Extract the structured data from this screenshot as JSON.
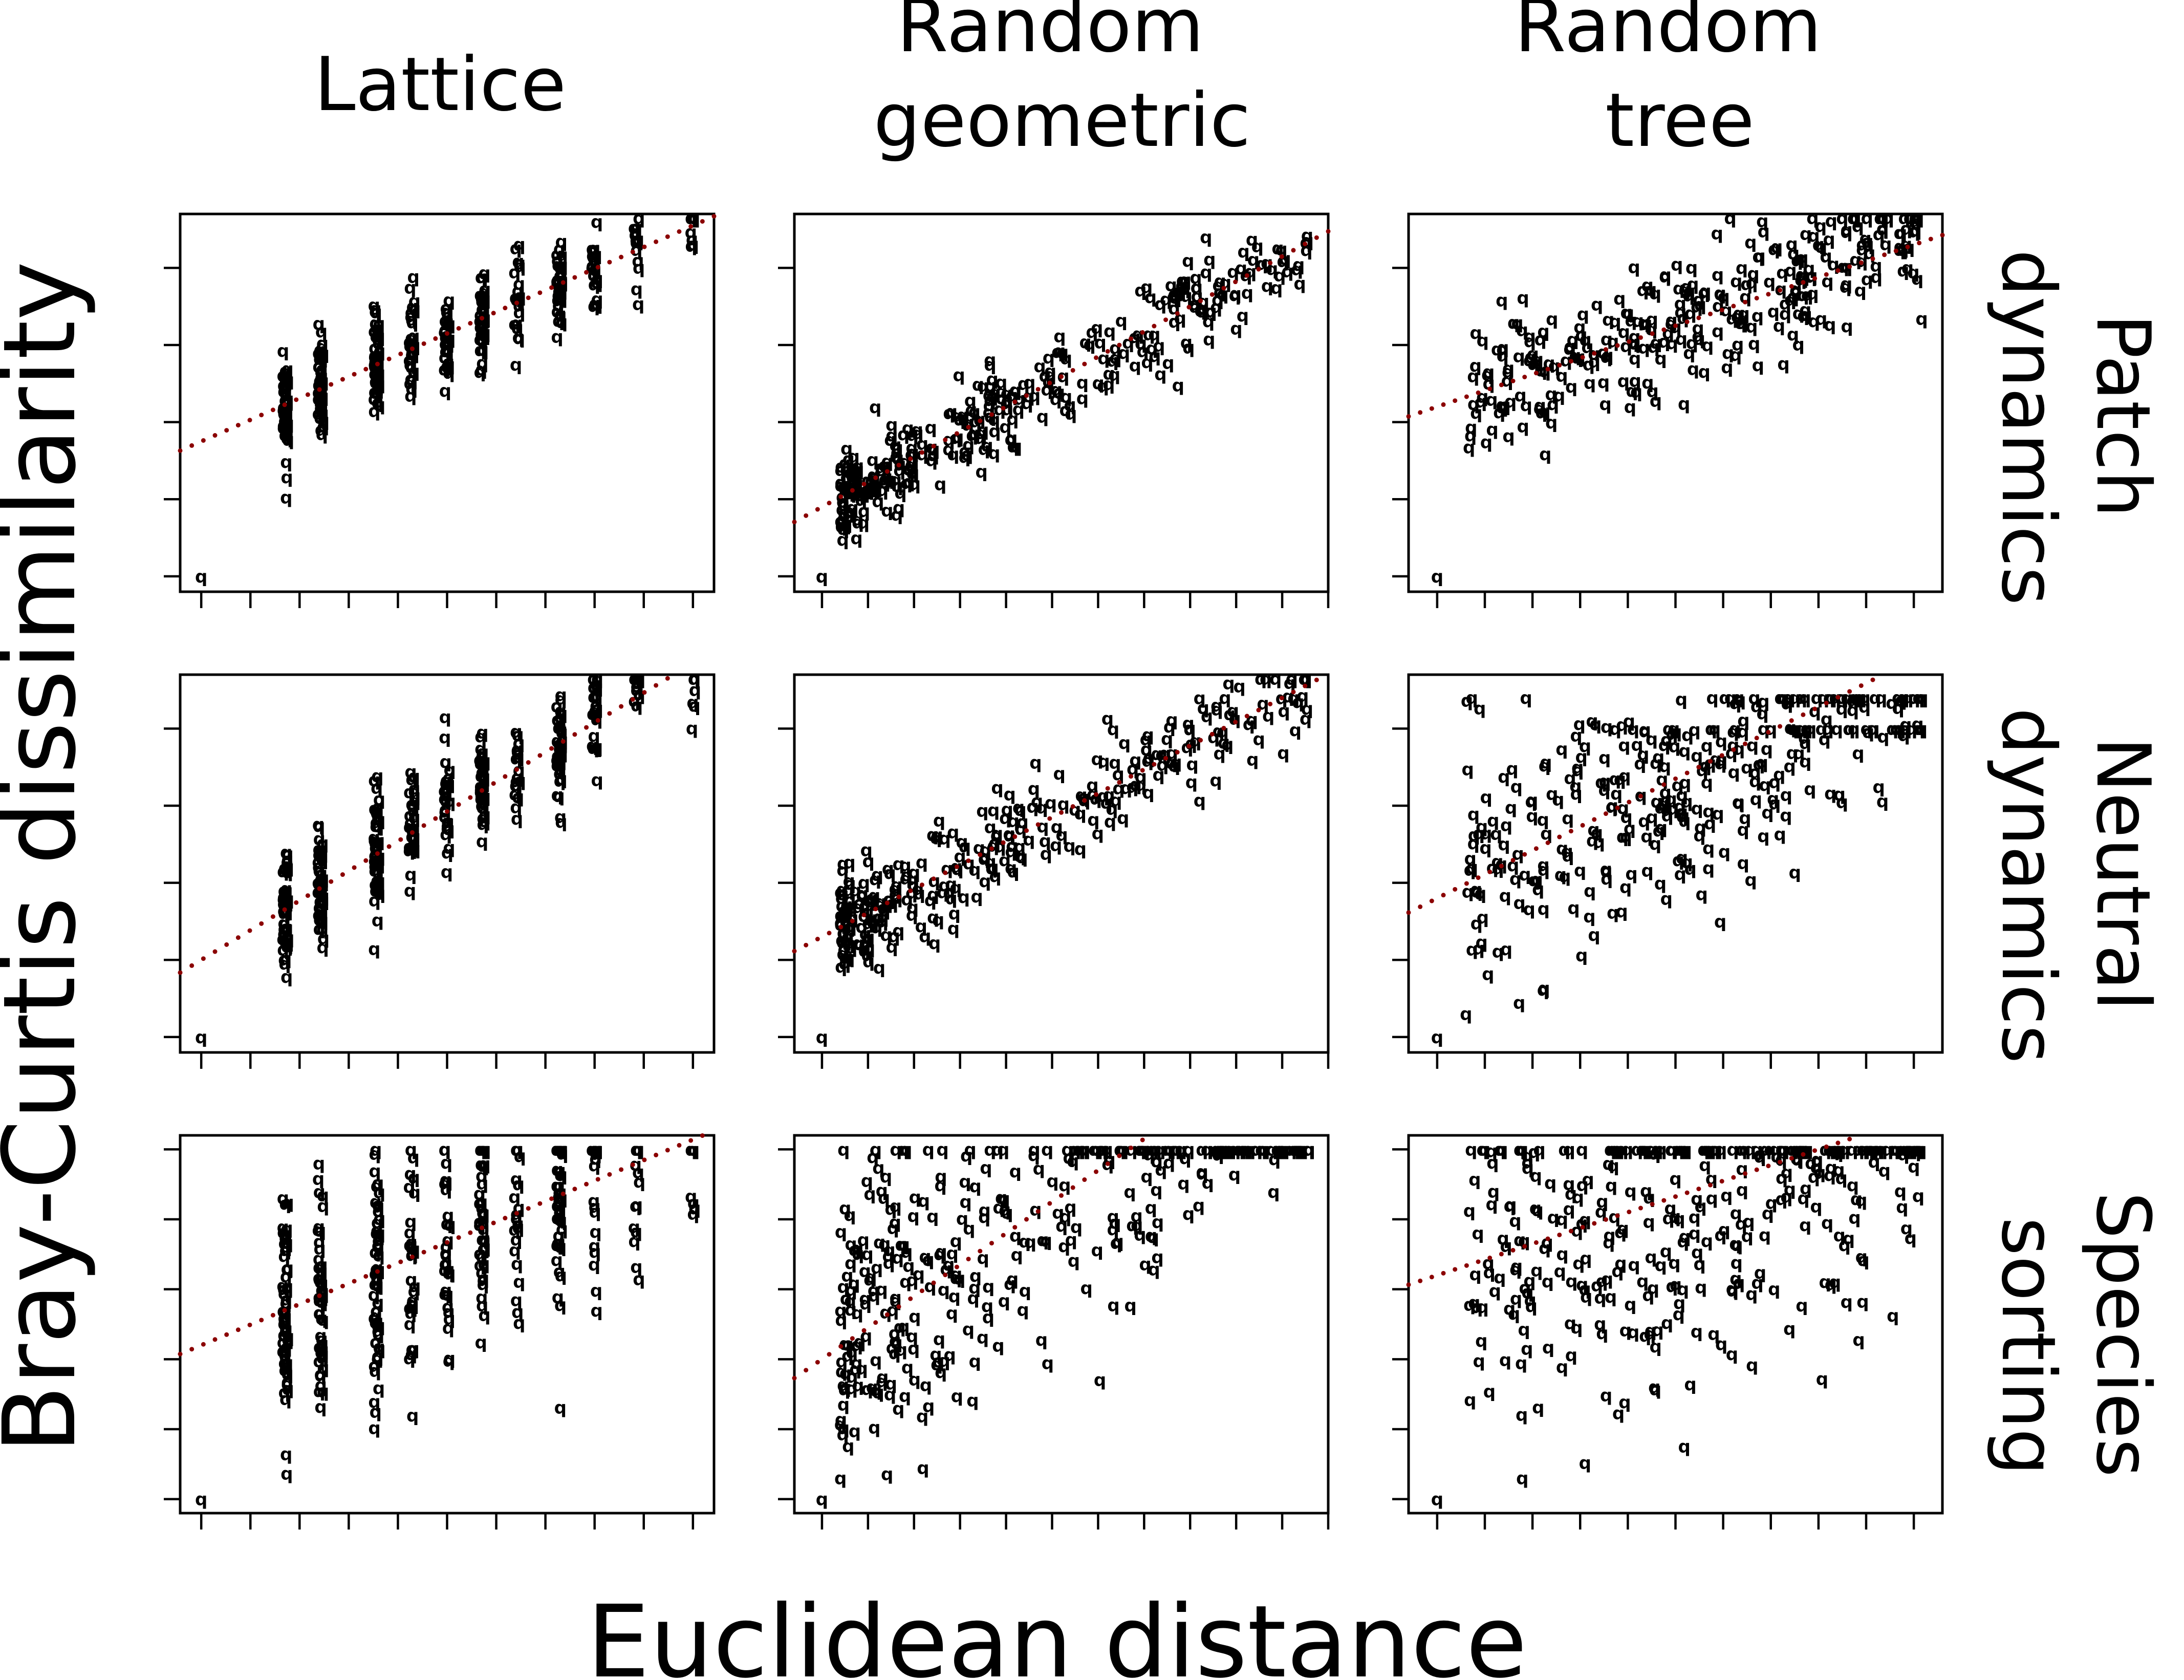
{
  "figure": {
    "xlabel": "Euclidean distance",
    "ylabel": "Bray-Curtis dissimilarity",
    "columns": [
      {
        "lines": [
          "Lattice"
        ]
      },
      {
        "lines": [
          "Random",
          "geometric"
        ]
      },
      {
        "lines": [
          "Random",
          "tree"
        ]
      }
    ],
    "rows": [
      {
        "lines": [
          "Patch",
          "dynamics"
        ]
      },
      {
        "lines": [
          "Neutral",
          "dynamics"
        ]
      },
      {
        "lines": [
          "Species",
          "sorting"
        ]
      }
    ],
    "point_symbol": "q",
    "colors": {
      "points": "#000000",
      "fit_line": "#8b0000",
      "frame": "#000000",
      "background": "#ffffff"
    }
  },
  "chart_data": [
    {
      "type": "scatter",
      "panel": "Lattice / Patch dynamics",
      "xlim": [
        -0.3,
        7.3
      ],
      "ylim": [
        -0.2,
        4.7
      ],
      "fit": {
        "intercept": 1.75,
        "slope": 0.4
      },
      "spread": 0.32,
      "seed": 11,
      "origin_point": [
        0,
        0
      ],
      "clusters": [
        [
          1.2,
          60
        ],
        [
          1.7,
          50
        ],
        [
          2.5,
          55
        ],
        [
          3,
          30
        ],
        [
          3.5,
          30
        ],
        [
          4,
          40
        ],
        [
          4.5,
          20
        ],
        [
          5.1,
          45
        ],
        [
          5.6,
          20
        ],
        [
          6.2,
          15
        ],
        [
          7,
          6
        ]
      ],
      "grid": false
    },
    {
      "type": "scatter",
      "panel": "Random geometric / Patch dynamics",
      "xlim": [
        -0.3,
        5.5
      ],
      "ylim": [
        -0.2,
        4.7
      ],
      "fit": {
        "intercept": 0.9,
        "slope": 0.65
      },
      "spread": 0.28,
      "seed": 22,
      "origin_point": [
        0,
        0
      ],
      "x_range": [
        0.2,
        5.3
      ],
      "x_density": "decreasing",
      "n": 330,
      "grid": false
    },
    {
      "type": "scatter",
      "panel": "Random tree / Patch dynamics",
      "xlim": [
        -0.3,
        5.3
      ],
      "ylim": [
        -0.2,
        4.7
      ],
      "fit": {
        "intercept": 2.2,
        "slope": 0.42
      },
      "spread": 0.45,
      "seed": 33,
      "origin_point": [
        0,
        0
      ],
      "x_range": [
        0.3,
        5.1
      ],
      "x_density": "uniform",
      "n": 300,
      "grid": false
    },
    {
      "type": "scatter",
      "panel": "Lattice / Neutral dynamics",
      "xlim": [
        -0.3,
        7.3
      ],
      "ylim": [
        -0.2,
        4.7
      ],
      "fit": {
        "intercept": 1.0,
        "slope": 0.55
      },
      "spread": 0.38,
      "seed": 44,
      "origin_point": [
        0,
        0
      ],
      "clusters": [
        [
          1.2,
          60
        ],
        [
          1.7,
          50
        ],
        [
          2.5,
          55
        ],
        [
          3,
          30
        ],
        [
          3.5,
          30
        ],
        [
          4,
          40
        ],
        [
          4.5,
          20
        ],
        [
          5.1,
          45
        ],
        [
          5.6,
          20
        ],
        [
          6.2,
          15
        ],
        [
          7,
          6
        ]
      ],
      "grid": false
    },
    {
      "type": "scatter",
      "panel": "Random geometric / Neutral dynamics",
      "xlim": [
        -0.3,
        5.5
      ],
      "ylim": [
        -0.2,
        4.7
      ],
      "fit": {
        "intercept": 1.3,
        "slope": 0.62
      },
      "spread": 0.35,
      "seed": 55,
      "origin_point": [
        0,
        0
      ],
      "x_range": [
        0.2,
        5.3
      ],
      "x_density": "decreasing",
      "n": 300,
      "grid": false
    },
    {
      "type": "scatter",
      "panel": "Random tree / Neutral dynamics",
      "xlim": [
        -0.3,
        5.3
      ],
      "ylim": [
        -0.2,
        4.7
      ],
      "fit": {
        "intercept": 1.8,
        "slope": 0.62
      },
      "spread": 0.85,
      "seed": 66,
      "origin_point": [
        0,
        0
      ],
      "cap": [
        4.0,
        4.4
      ],
      "x_range": [
        0.3,
        5.1
      ],
      "x_density": "uniform",
      "n": 330,
      "grid": false
    },
    {
      "type": "scatter",
      "panel": "Lattice / Species sorting",
      "xlim": [
        -0.3,
        7.3
      ],
      "ylim": [
        -0.2,
        5.2
      ],
      "fit": {
        "intercept": 2.2,
        "slope": 0.42
      },
      "spread": 0.9,
      "seed": 77,
      "origin_point": [
        0,
        0
      ],
      "cap": [
        5.0
      ],
      "clusters": [
        [
          1.2,
          60
        ],
        [
          1.7,
          50
        ],
        [
          2.5,
          55
        ],
        [
          3,
          30
        ],
        [
          3.5,
          30
        ],
        [
          4,
          40
        ],
        [
          4.5,
          20
        ],
        [
          5.1,
          45
        ],
        [
          5.6,
          20
        ],
        [
          6.2,
          15
        ],
        [
          7,
          6
        ]
      ],
      "grid": false
    },
    {
      "type": "scatter",
      "panel": "Random geometric / Species sorting",
      "xlim": [
        -0.3,
        5.5
      ],
      "ylim": [
        -0.2,
        5.2
      ],
      "fit": {
        "intercept": 2.0,
        "slope": 0.9
      },
      "spread": 1.2,
      "seed": 88,
      "origin_point": [
        0,
        0
      ],
      "cap": [
        5.0
      ],
      "x_range": [
        0.2,
        5.3
      ],
      "x_density": "decreasing",
      "n": 330,
      "grid": false
    },
    {
      "type": "scatter",
      "panel": "Random tree / Species sorting",
      "xlim": [
        -0.3,
        5.3
      ],
      "ylim": [
        -0.2,
        5.2
      ],
      "fit": {
        "intercept": 3.2,
        "slope": 0.45
      },
      "spread": 1.4,
      "seed": 99,
      "origin_point": [
        0,
        0
      ],
      "cap": [
        5.0
      ],
      "x_range": [
        0.3,
        5.1
      ],
      "x_density": "uniform",
      "n": 330,
      "grid": false
    }
  ]
}
